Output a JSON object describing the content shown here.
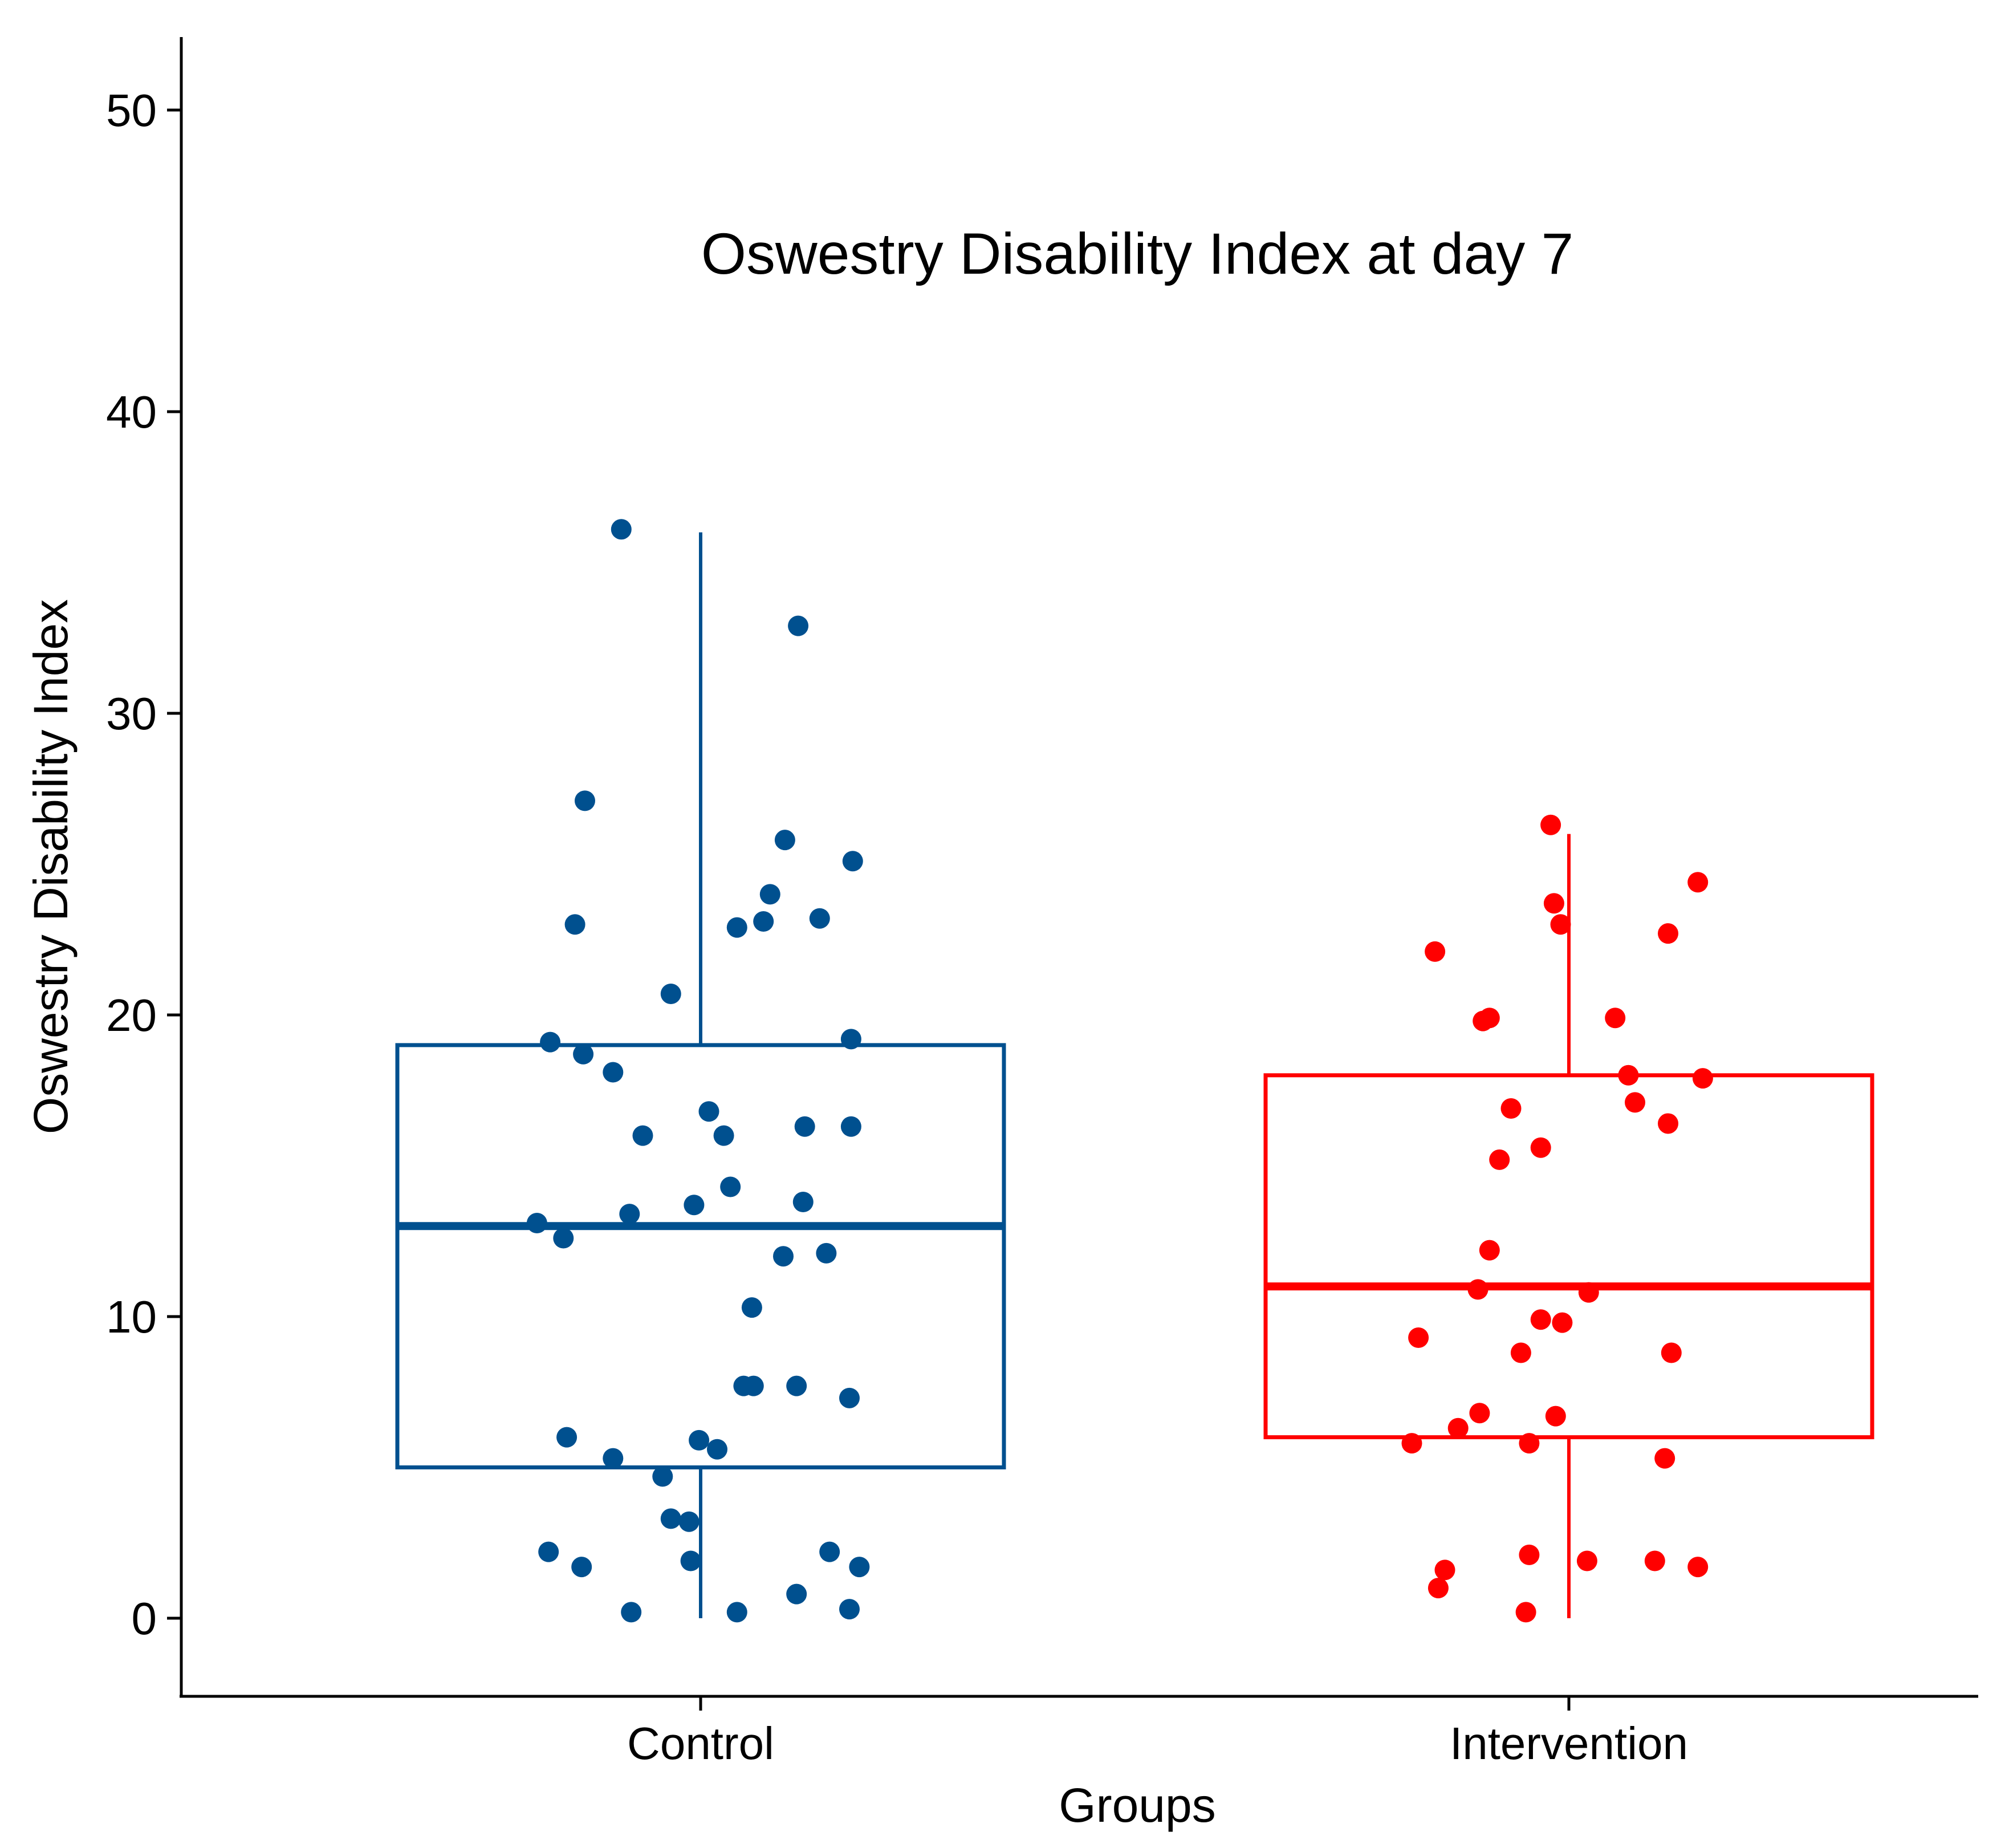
{
  "chart_data": {
    "type": "boxplot",
    "title": "Oswestry Disability Index at day 7",
    "xlabel": "Groups",
    "ylabel": "Oswestry Disability Index",
    "ylim": [
      -2.5,
      52.5
    ],
    "yticks": [
      0,
      10,
      20,
      30,
      40,
      50
    ],
    "grid": false,
    "categories": [
      "Control",
      "Intervention"
    ],
    "groups": [
      {
        "name": "Control",
        "color": "#00508F",
        "whisker_low": 0,
        "q1": 5,
        "median": 13,
        "q3": 19,
        "whisker_high": 36,
        "points": [
          {
            "offset": -0.48,
            "y": 36.1
          },
          {
            "offset": 0.59,
            "y": 32.9
          },
          {
            "offset": -0.7,
            "y": 27.1
          },
          {
            "offset": 0.51,
            "y": 25.8
          },
          {
            "offset": 0.92,
            "y": 25.1
          },
          {
            "offset": 0.42,
            "y": 24.0
          },
          {
            "offset": 0.38,
            "y": 23.1
          },
          {
            "offset": 0.72,
            "y": 23.2
          },
          {
            "offset": -0.76,
            "y": 23.0
          },
          {
            "offset": 0.22,
            "y": 22.9
          },
          {
            "offset": -0.18,
            "y": 20.7
          },
          {
            "offset": -0.91,
            "y": 19.1
          },
          {
            "offset": -0.71,
            "y": 18.7
          },
          {
            "offset": 0.91,
            "y": 19.2
          },
          {
            "offset": -0.53,
            "y": 18.1
          },
          {
            "offset": 0.05,
            "y": 16.8
          },
          {
            "offset": 0.14,
            "y": 16.0
          },
          {
            "offset": -0.35,
            "y": 16.0
          },
          {
            "offset": 0.63,
            "y": 16.3
          },
          {
            "offset": 0.91,
            "y": 16.3
          },
          {
            "offset": 0.18,
            "y": 14.3
          },
          {
            "offset": -0.04,
            "y": 13.7
          },
          {
            "offset": -0.43,
            "y": 13.4
          },
          {
            "offset": 0.62,
            "y": 13.8
          },
          {
            "offset": -0.99,
            "y": 13.1
          },
          {
            "offset": -0.83,
            "y": 12.6
          },
          {
            "offset": 0.5,
            "y": 12.0
          },
          {
            "offset": 0.76,
            "y": 12.1
          },
          {
            "offset": 0.31,
            "y": 10.3
          },
          {
            "offset": 0.26,
            "y": 7.7
          },
          {
            "offset": 0.32,
            "y": 7.7
          },
          {
            "offset": 0.58,
            "y": 7.7
          },
          {
            "offset": 0.9,
            "y": 7.3
          },
          {
            "offset": -0.81,
            "y": 6.0
          },
          {
            "offset": -0.01,
            "y": 5.9
          },
          {
            "offset": 0.1,
            "y": 5.6
          },
          {
            "offset": -0.53,
            "y": 5.3
          },
          {
            "offset": -0.23,
            "y": 4.7
          },
          {
            "offset": -0.18,
            "y": 3.3
          },
          {
            "offset": -0.07,
            "y": 3.2
          },
          {
            "offset": -0.92,
            "y": 2.2
          },
          {
            "offset": -0.72,
            "y": 1.7
          },
          {
            "offset": -0.06,
            "y": 1.9
          },
          {
            "offset": 0.78,
            "y": 2.2
          },
          {
            "offset": 0.96,
            "y": 1.7
          },
          {
            "offset": 0.58,
            "y": 0.8
          },
          {
            "offset": -0.42,
            "y": 0.2
          },
          {
            "offset": 0.22,
            "y": 0.2
          },
          {
            "offset": 0.9,
            "y": 0.3
          }
        ]
      },
      {
        "name": "Intervention",
        "color": "#FF0000",
        "whisker_low": 0,
        "q1": 6,
        "median": 11,
        "q3": 18,
        "whisker_high": 26,
        "points": [
          {
            "offset": -0.11,
            "y": 26.3
          },
          {
            "offset": 0.78,
            "y": 24.4
          },
          {
            "offset": -0.09,
            "y": 23.7
          },
          {
            "offset": -0.05,
            "y": 23.0
          },
          {
            "offset": 0.6,
            "y": 22.7
          },
          {
            "offset": -0.81,
            "y": 22.1
          },
          {
            "offset": -0.52,
            "y": 19.8
          },
          {
            "offset": -0.48,
            "y": 19.9
          },
          {
            "offset": 0.28,
            "y": 19.9
          },
          {
            "offset": 0.36,
            "y": 18.0
          },
          {
            "offset": 0.81,
            "y": 17.9
          },
          {
            "offset": 0.4,
            "y": 17.1
          },
          {
            "offset": -0.35,
            "y": 16.9
          },
          {
            "offset": 0.6,
            "y": 16.4
          },
          {
            "offset": -0.17,
            "y": 15.6
          },
          {
            "offset": -0.42,
            "y": 15.2
          },
          {
            "offset": -0.48,
            "y": 12.2
          },
          {
            "offset": -0.55,
            "y": 10.9
          },
          {
            "offset": 0.12,
            "y": 10.8
          },
          {
            "offset": -0.17,
            "y": 9.9
          },
          {
            "offset": -0.04,
            "y": 9.8
          },
          {
            "offset": -0.91,
            "y": 9.3
          },
          {
            "offset": -0.29,
            "y": 8.8
          },
          {
            "offset": 0.62,
            "y": 8.8
          },
          {
            "offset": -0.54,
            "y": 6.8
          },
          {
            "offset": -0.08,
            "y": 6.7
          },
          {
            "offset": -0.67,
            "y": 6.3
          },
          {
            "offset": -0.95,
            "y": 5.8
          },
          {
            "offset": -0.24,
            "y": 5.8
          },
          {
            "offset": 0.58,
            "y": 5.3
          },
          {
            "offset": -0.24,
            "y": 2.1
          },
          {
            "offset": 0.11,
            "y": 1.9
          },
          {
            "offset": 0.52,
            "y": 1.9
          },
          {
            "offset": 0.78,
            "y": 1.7
          },
          {
            "offset": -0.75,
            "y": 1.6
          },
          {
            "offset": -0.79,
            "y": 1.0
          },
          {
            "offset": -0.26,
            "y": 0.2
          }
        ]
      }
    ]
  }
}
